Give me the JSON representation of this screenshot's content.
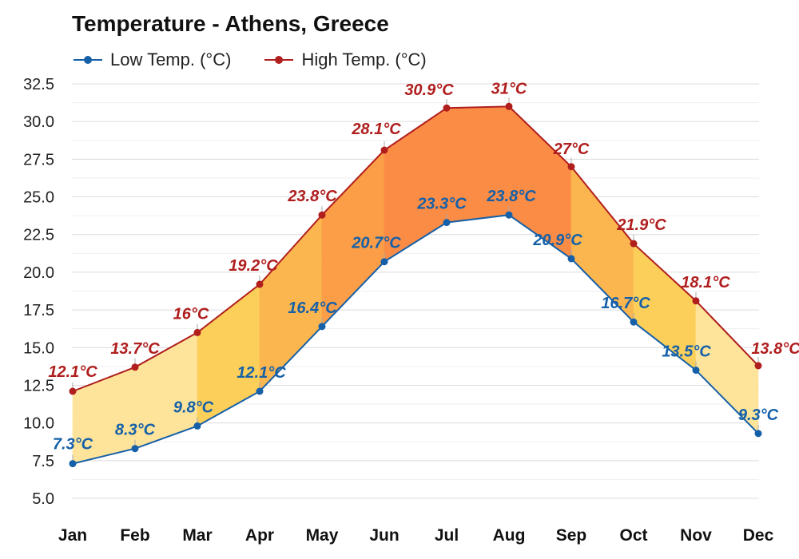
{
  "chart_data": {
    "type": "line",
    "title": "Temperature - Athens, Greece",
    "categories": [
      "Jan",
      "Feb",
      "Mar",
      "Apr",
      "May",
      "Jun",
      "Jul",
      "Aug",
      "Sep",
      "Oct",
      "Nov",
      "Dec"
    ],
    "series": [
      {
        "name": "Low Temp. (°C)",
        "color": "#1560a8",
        "values": [
          7.3,
          8.3,
          9.8,
          12.1,
          16.4,
          20.7,
          23.3,
          23.8,
          20.9,
          16.7,
          13.5,
          9.3
        ],
        "labels": [
          "7.3°C",
          "8.3°C",
          "9.8°C",
          "12.1°C",
          "16.4°C",
          "20.7°C",
          "23.3°C",
          "23.8°C",
          "20.9°C",
          "16.7°C",
          "13.5°C",
          "9.3°C"
        ]
      },
      {
        "name": "High Temp. (°C)",
        "color": "#b01e1e",
        "values": [
          12.1,
          13.7,
          16,
          19.2,
          23.8,
          28.1,
          30.9,
          31,
          27,
          21.9,
          18.1,
          13.8
        ],
        "labels": [
          "12.1°C",
          "13.7°C",
          "16°C",
          "19.2°C",
          "23.8°C",
          "28.1°C",
          "30.9°C",
          "31°C",
          "27°C",
          "21.9°C",
          "18.1°C",
          "13.8°C"
        ]
      }
    ],
    "ylim": [
      5,
      32.5
    ],
    "yticks": [
      "5.0",
      "7.5",
      "10.0",
      "12.5",
      "15.0",
      "17.5",
      "20.0",
      "22.5",
      "25.0",
      "27.5",
      "30.0",
      "32.5"
    ],
    "grid": true,
    "legend": "top-left",
    "band_colors": [
      "#fde49a",
      "#fccf5a",
      "#fbb650",
      "#fb9e47",
      "#fb8c45"
    ]
  }
}
